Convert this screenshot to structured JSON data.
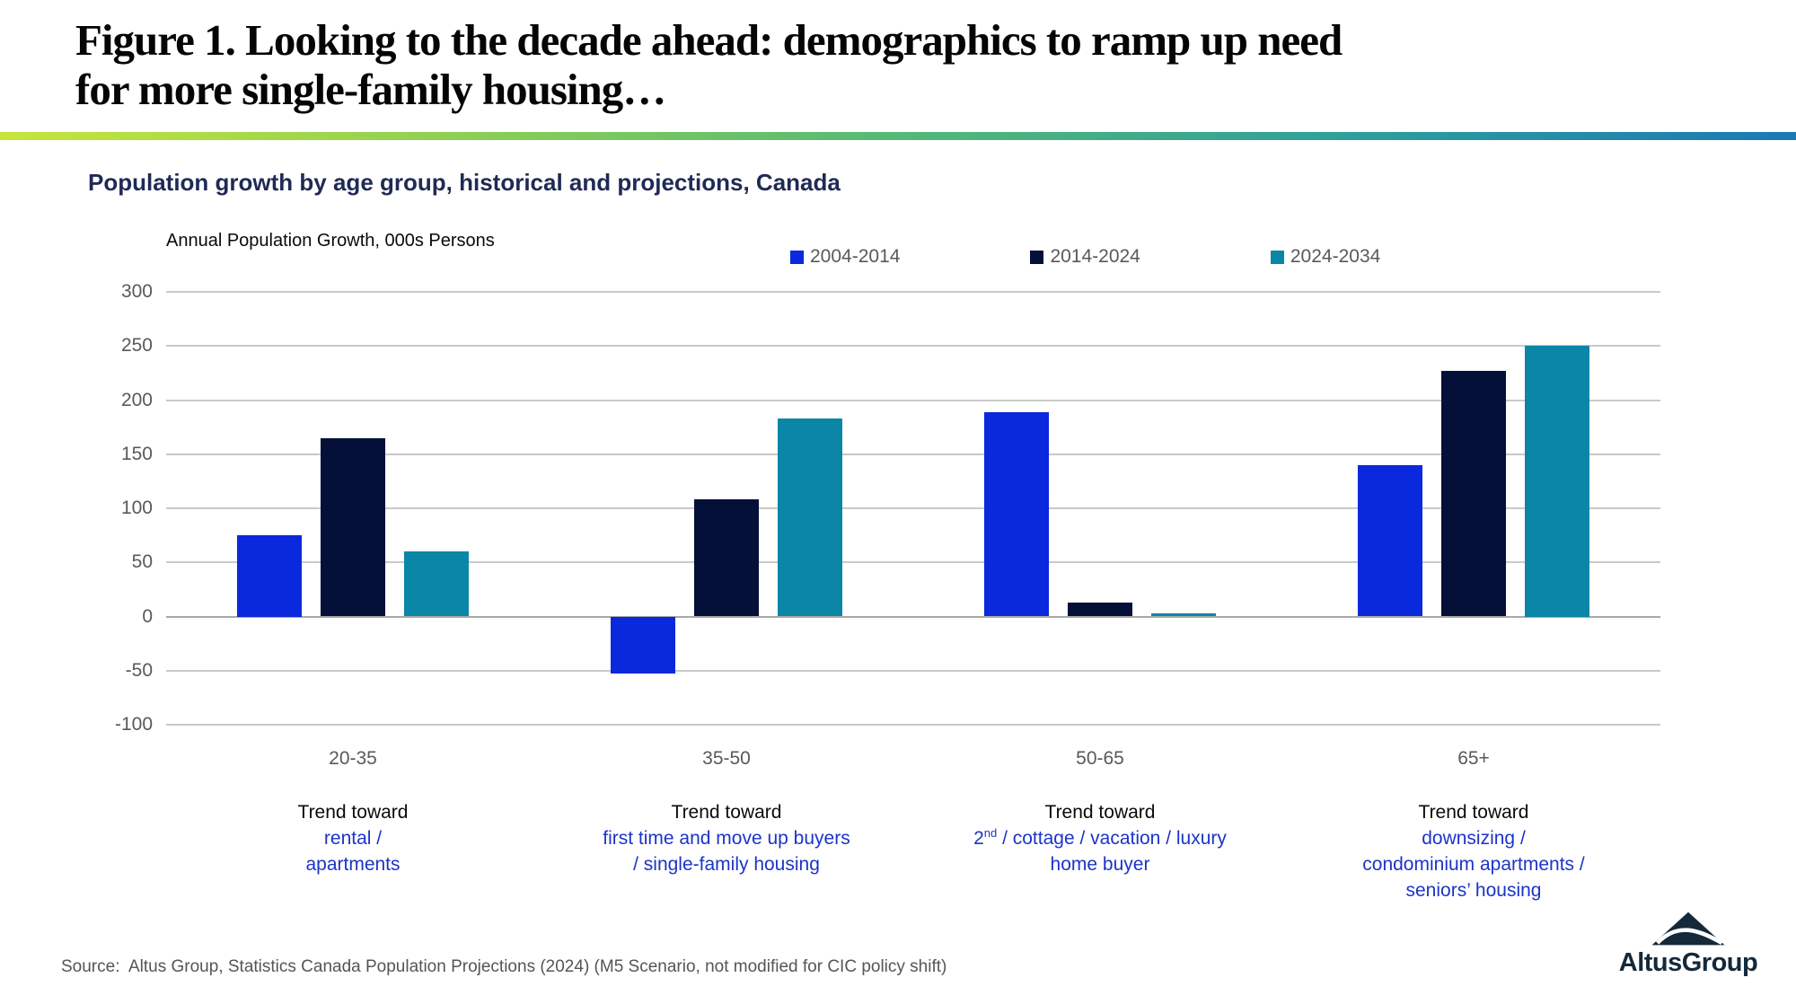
{
  "header": {
    "title_line1": "Figure 1. Looking to the decade ahead: demographics to ramp up need",
    "title_line2": "for more single-family housing…"
  },
  "chart_title": "Population growth by age group, historical and projections, Canada",
  "axis_note": "Annual Population Growth, 000s Persons",
  "chart_data": {
    "type": "bar",
    "title": "Population growth by age group, historical and projections, Canada",
    "unit_label": "Annual Population Growth, 000s Persons",
    "categories": [
      "20-35",
      "35-50",
      "50-65",
      "65+"
    ],
    "series": [
      {
        "name": "2004-2014",
        "color": "#0a28dc",
        "values": [
          75,
          -53,
          189,
          140
        ]
      },
      {
        "name": "2014-2024",
        "color": "#041038",
        "values": [
          165,
          108,
          13,
          227
        ]
      },
      {
        "name": "2024-2034",
        "color": "#0b86a6",
        "values": [
          60,
          183,
          3,
          250
        ]
      }
    ],
    "ylim": [
      -100,
      300
    ],
    "yticks": [
      300,
      250,
      200,
      150,
      100,
      50,
      0,
      -50,
      -100
    ],
    "grid": true,
    "legend_position": "top"
  },
  "trend_annotations": [
    {
      "intro": "Trend toward",
      "lines": [
        "rental /",
        "apartments"
      ]
    },
    {
      "intro": "Trend toward",
      "lines": [
        "first time and move up buyers",
        "/ single-family housing"
      ]
    },
    {
      "intro": "Trend toward",
      "lines": [
        "2{^nd} / cottage / vacation / luxury",
        "home buyer"
      ]
    },
    {
      "intro": "Trend toward",
      "lines": [
        "downsizing /",
        "condominium apartments /",
        "seniors’ housing"
      ]
    }
  ],
  "source_note": "Source:  Altus Group, Statistics Canada Population Projections (2024) (M5 Scenario, not modified for CIC policy shift)",
  "logo": {
    "text": "AltusGroup",
    "icon": "mountain-icon"
  },
  "colors": {
    "accent_gradient_left": "#c6e53b",
    "accent_gradient_mid": "#54b977",
    "accent_gradient_right": "#1b79b5",
    "trend_blue": "#1c34c8",
    "subtitle_navy": "#1f2a55",
    "axis_gray": "#595959",
    "gridline_gray": "#c9c9c9",
    "logo_navy": "#14293a"
  }
}
